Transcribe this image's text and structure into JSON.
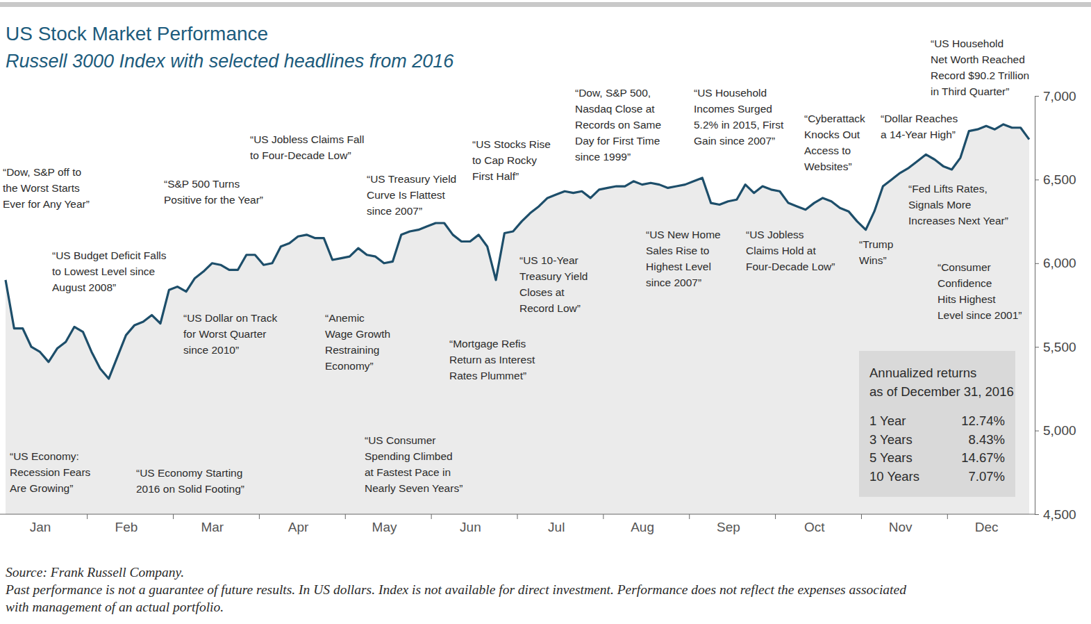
{
  "chart_data": {
    "type": "line",
    "title": "US Stock Market Performance",
    "subtitle": "Russell 3000 Index with selected headlines from 2016",
    "categories": [
      null,
      null,
      null,
      null,
      "Jan",
      null,
      null,
      null,
      null,
      null,
      null,
      null,
      null,
      null,
      "Feb",
      null,
      null,
      null,
      null,
      null,
      null,
      null,
      null,
      null,
      "Mar",
      null,
      null,
      null,
      null,
      null,
      null,
      null,
      null,
      null,
      "Apr",
      null,
      null,
      null,
      null,
      null,
      null,
      null,
      null,
      null,
      "May",
      null,
      null,
      null,
      null,
      null,
      null,
      null,
      null,
      null,
      "Jun",
      null,
      null,
      null,
      null,
      null,
      null,
      null,
      null,
      null,
      "Jul",
      null,
      null,
      null,
      null,
      null,
      null,
      null,
      null,
      null,
      "Aug",
      null,
      null,
      null,
      null,
      null,
      null,
      null,
      null,
      null,
      "Sep",
      null,
      null,
      null,
      null,
      null,
      null,
      null,
      null,
      null,
      "Oct",
      null,
      null,
      null,
      null,
      null,
      null,
      null,
      null,
      null,
      "Nov",
      null,
      null,
      null,
      null,
      null,
      null,
      null,
      null,
      null,
      "Dec",
      null,
      null,
      null,
      null,
      null
    ],
    "values": [
      5900,
      5610,
      5610,
      5500,
      5470,
      5410,
      5490,
      5530,
      5620,
      5590,
      5470,
      5370,
      5310,
      5440,
      5570,
      5630,
      5650,
      5690,
      5640,
      5840,
      5860,
      5830,
      5910,
      5950,
      6000,
      5990,
      5960,
      5960,
      6050,
      6050,
      5990,
      6000,
      6100,
      6120,
      6160,
      6170,
      6150,
      6150,
      6020,
      6030,
      6040,
      6090,
      6050,
      6040,
      6000,
      6010,
      6170,
      6190,
      6200,
      6220,
      6240,
      6240,
      6170,
      6130,
      6130,
      6170,
      6100,
      5900,
      6180,
      6190,
      6250,
      6300,
      6340,
      6390,
      6410,
      6430,
      6420,
      6430,
      6390,
      6440,
      6450,
      6460,
      6460,
      6490,
      6470,
      6480,
      6470,
      6450,
      6460,
      6470,
      6490,
      6510,
      6360,
      6350,
      6370,
      6380,
      6470,
      6420,
      6460,
      6440,
      6430,
      6360,
      6340,
      6320,
      6360,
      6390,
      6370,
      6330,
      6310,
      6250,
      6200,
      6310,
      6460,
      6500,
      6540,
      6570,
      6610,
      6650,
      6620,
      6580,
      6560,
      6630,
      6790,
      6800,
      6820,
      6800,
      6830,
      6810,
      6810,
      6740
    ],
    "color": "#1d4e6a",
    "ylim": [
      4500,
      7000
    ],
    "yticks": [
      {
        "value": 4500,
        "label": "4,500"
      },
      {
        "value": 5000,
        "label": "5,000"
      },
      {
        "value": 5500,
        "label": "5,500"
      },
      {
        "value": 6000,
        "label": "6,000"
      },
      {
        "value": 6500,
        "label": "6,500"
      },
      {
        "value": 7000,
        "label": "7,000"
      }
    ],
    "grid": false,
    "annotations": [
      {
        "lines": [
          "“Dow, S&P off to",
          "the Worst Starts",
          "Ever for Any Year”"
        ]
      },
      {
        "lines": [
          "“US Budget Deficit Falls",
          "to Lowest Level since",
          "August 2008”"
        ]
      },
      {
        "lines": [
          "“US Economy:",
          "Recession Fears",
          "Are Growing”"
        ]
      },
      {
        "lines": [
          "“US Economy Starting",
          "2016 on Solid Footing”"
        ]
      },
      {
        "lines": [
          "“S&P 500 Turns",
          "Positive for the Year”"
        ]
      },
      {
        "lines": [
          "“US Dollar on Track",
          "for Worst Quarter",
          "since 2010”"
        ]
      },
      {
        "lines": [
          "“US Jobless Claims Fall",
          "to Four-Decade Low”"
        ]
      },
      {
        "lines": [
          "“US Treasury Yield",
          "Curve Is Flattest",
          "since 2007”"
        ]
      },
      {
        "lines": [
          "“Anemic",
          "Wage Growth",
          "Restraining",
          "Economy”"
        ]
      },
      {
        "lines": [
          "“US Consumer",
          "Spending Climbed",
          "at Fastest Pace in",
          "Nearly Seven Years”"
        ]
      },
      {
        "lines": [
          "“US Stocks Rise",
          "to Cap Rocky",
          "First Half”"
        ]
      },
      {
        "lines": [
          "“Mortgage Refis",
          "Return as Interest",
          "Rates Plummet”"
        ]
      },
      {
        "lines": [
          "“US 10-Year",
          "Treasury Yield",
          "Closes at",
          "Record Low”"
        ]
      },
      {
        "lines": [
          "“Dow, S&P 500,",
          "Nasdaq Close at",
          "Records on Same",
          "Day for First Time",
          "since 1999”"
        ]
      },
      {
        "lines": [
          "“US Household",
          "Incomes Surged",
          "5.2% in 2015, First",
          "Gain since 2007”"
        ]
      },
      {
        "lines": [
          "“US New Home",
          "Sales Rise to",
          "Highest Level",
          "since 2007”"
        ]
      },
      {
        "lines": [
          "“US Jobless",
          "Claims Hold at",
          "Four-Decade Low”"
        ]
      },
      {
        "lines": [
          "“Cyberattack",
          "Knocks Out",
          "Access to",
          "Websites”"
        ]
      },
      {
        "lines": [
          "“Trump",
          "Wins”"
        ]
      },
      {
        "lines": [
          "“Dollar Reaches",
          "a 14-Year High”"
        ]
      },
      {
        "lines": [
          "“US Household",
          "Net Worth Reached",
          "Record $90.2 Trillion",
          "in Third Quarter”"
        ]
      },
      {
        "lines": [
          "“Fed Lifts Rates,",
          "Signals More",
          "Increases Next Year”"
        ]
      },
      {
        "lines": [
          "“Consumer",
          "Confidence",
          "Hits Highest",
          "Level since 2001”"
        ]
      }
    ],
    "returns_table": {
      "title": [
        "Annualized returns",
        "as of December 31, 2016"
      ],
      "rows": [
        [
          "1 Year",
          "12.74%"
        ],
        [
          "3 Years",
          "8.43%"
        ],
        [
          "5 Years",
          "14.67%"
        ],
        [
          "10 Years",
          "7.07%"
        ]
      ]
    },
    "notes": [
      "Source: Frank Russell Company.",
      "Past performance is not a guarantee of future results. In US dollars. Index is not available for direct investment. Performance does not reflect the expenses associated",
      "with management of an actual portfolio."
    ]
  }
}
